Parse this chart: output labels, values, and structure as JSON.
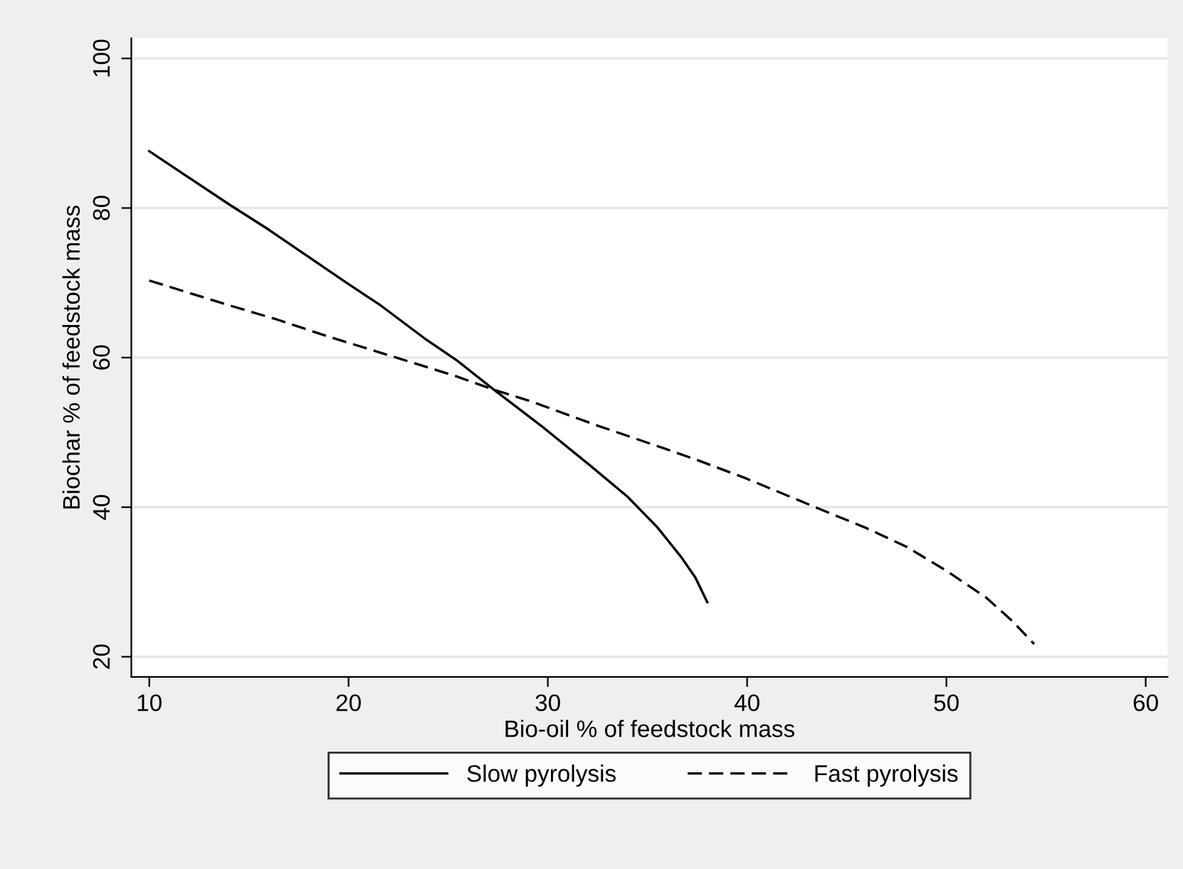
{
  "chart_data": {
    "type": "line",
    "xlabel": "Bio-oil % of feedstock mass",
    "ylabel": "Biochar % of feedstock mass",
    "xlim": [
      9.1,
      61.1
    ],
    "xticks": [
      10,
      20,
      30,
      40,
      50,
      60
    ],
    "ylim": [
      17.3,
      102.7
    ],
    "yticks": [
      20,
      40,
      60,
      80,
      100
    ],
    "grid": "y",
    "legend": "bottom",
    "series": [
      {
        "name": "Slow pyrolysis",
        "color": "#000000",
        "line_style": "solid",
        "x": [
          10,
          14,
          16.0,
          19.9,
          21.6,
          23.8,
          25.4,
          27.3,
          29.8,
          32.2,
          34.0,
          35.5,
          36.7,
          37.4,
          38.0
        ],
        "values": [
          87.6,
          80.5,
          77.1,
          70.0,
          67.0,
          62.6,
          59.7,
          55.7,
          50.6,
          45.4,
          41.4,
          37.3,
          33.3,
          30.6,
          27.3
        ]
      },
      {
        "name": "Fast pyrolysis",
        "color": "#000000",
        "line_style": "dashed",
        "x": [
          10,
          14,
          16.4,
          19.0,
          22.4,
          25.4,
          27.3,
          29.1,
          32.5,
          35.9,
          37.5,
          39.9,
          43.6,
          45.9,
          48.0,
          50.0,
          52.0,
          53.3,
          54.4
        ],
        "values": [
          70.3,
          67.0,
          65.1,
          62.8,
          60.0,
          57.5,
          55.7,
          54.2,
          50.9,
          47.8,
          46.3,
          43.9,
          39.8,
          37.3,
          34.7,
          31.5,
          27.9,
          24.8,
          21.7
        ]
      }
    ]
  }
}
